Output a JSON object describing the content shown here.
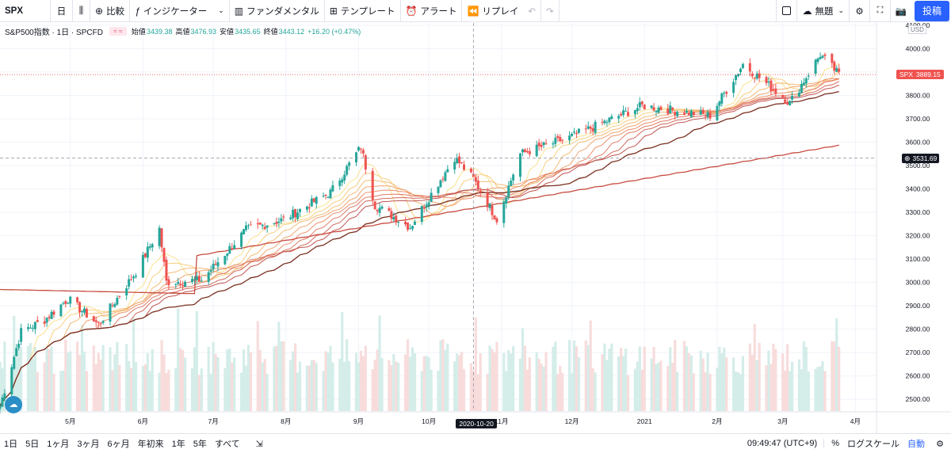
{
  "toolbar": {
    "symbol": "SPX",
    "interval": "日",
    "candle_icon": "candles-icon",
    "compare_label": "比較",
    "indicators_label": "インジケーター",
    "fundamental_label": "ファンダメンタル",
    "template_label": "テンプレート",
    "alert_label": "アラート",
    "replay_label": "リプレイ",
    "layout_name": "無題",
    "post_label": "投稿"
  },
  "legend": {
    "title": "S&P500指数 · 1日 · SPCFD",
    "open_label": "始値",
    "open": "3439.38",
    "high_label": "高値",
    "high": "3476.93",
    "low_label": "安値",
    "low": "3435.65",
    "close_label": "終値",
    "close": "3443.12",
    "change": "+16.20 (+0.47%)"
  },
  "currency": "USD",
  "price_tags": {
    "last_symbol": "SPX",
    "last_value": "3889.15",
    "crosshair_value": "3531.69",
    "crosshair_date": "2020-10-20"
  },
  "colors": {
    "up": "#26a69a",
    "down": "#ef5350",
    "accent": "#2962ff"
  },
  "bottom": {
    "ranges": [
      "1日",
      "5日",
      "1ヶ月",
      "3ヶ月",
      "6ヶ月",
      "年初来",
      "1年",
      "5年",
      "すべて"
    ],
    "time": "09:49:47 (UTC+9)",
    "percent": "%",
    "log_scale": "ログスケール",
    "auto": "自動"
  },
  "chart_data": {
    "type": "candlestick",
    "y_ticks": [
      "2500.00",
      "2600.00",
      "2700.00",
      "2800.00",
      "2900.00",
      "3000.00",
      "3100.00",
      "3200.00",
      "3300.00",
      "3400.00",
      "3500.00",
      "3600.00",
      "3700.00",
      "3800.00",
      "3900.00",
      "4000.00",
      "4100.00"
    ],
    "x_ticks": [
      {
        "label": "5月",
        "date": "2020-05-01"
      },
      {
        "label": "6月",
        "date": "2020-06-01"
      },
      {
        "label": "7月",
        "date": "2020-07-01"
      },
      {
        "label": "8月",
        "date": "2020-08-01"
      },
      {
        "label": "9月",
        "date": "2020-09-01"
      },
      {
        "label": "10月",
        "date": "2020-10-01"
      },
      {
        "label": "11月",
        "date": "2020-11-01"
      },
      {
        "label": "12月",
        "date": "2020-12-01"
      },
      {
        "label": "2021",
        "date": "2021-01-01"
      },
      {
        "label": "2月",
        "date": "2021-02-01"
      },
      {
        "label": "3月",
        "date": "2021-03-01"
      },
      {
        "label": "4月",
        "date": "2021-04-01"
      }
    ],
    "x_range": [
      "2020-04-01",
      "2021-04-10"
    ],
    "ylim": [
      2450,
      4110
    ],
    "close_anchors": [
      [
        "2020-04-01",
        2470
      ],
      [
        "2020-04-10",
        2790
      ],
      [
        "2020-04-20",
        2840
      ],
      [
        "2020-04-30",
        2930
      ],
      [
        "2020-05-13",
        2820
      ],
      [
        "2020-05-29",
        3045
      ],
      [
        "2020-06-08",
        3230
      ],
      [
        "2020-06-11",
        3002
      ],
      [
        "2020-06-26",
        3010
      ],
      [
        "2020-07-15",
        3225
      ],
      [
        "2020-07-31",
        3270
      ],
      [
        "2020-08-20",
        3385
      ],
      [
        "2020-09-02",
        3580
      ],
      [
        "2020-09-08",
        3330
      ],
      [
        "2020-09-23",
        3237
      ],
      [
        "2020-10-12",
        3535
      ],
      [
        "2020-10-20",
        3443
      ],
      [
        "2020-10-30",
        3270
      ],
      [
        "2020-11-09",
        3550
      ],
      [
        "2020-11-30",
        3620
      ],
      [
        "2020-12-31",
        3756
      ],
      [
        "2021-01-29",
        3714
      ],
      [
        "2021-02-12",
        3934
      ],
      [
        "2021-03-04",
        3768
      ],
      [
        "2021-03-17",
        3975
      ],
      [
        "2021-03-25",
        3889
      ]
    ],
    "volume_range": [
      0,
      1
    ],
    "moving_averages": {
      "fast_lengths": [
        10,
        15,
        20,
        25,
        30,
        35,
        40,
        45
      ],
      "slow_lengths": [
        60,
        200
      ],
      "colors": [
        "#fbe28f",
        "#f8cf81",
        "#f4bc77",
        "#f0a671",
        "#ec916c",
        "#e07d66",
        "#d2695d",
        "#c05550",
        "#7a2f1f",
        "#c74b3f"
      ]
    },
    "last_price": 3889.15,
    "crosshair_price": 3531.69
  }
}
